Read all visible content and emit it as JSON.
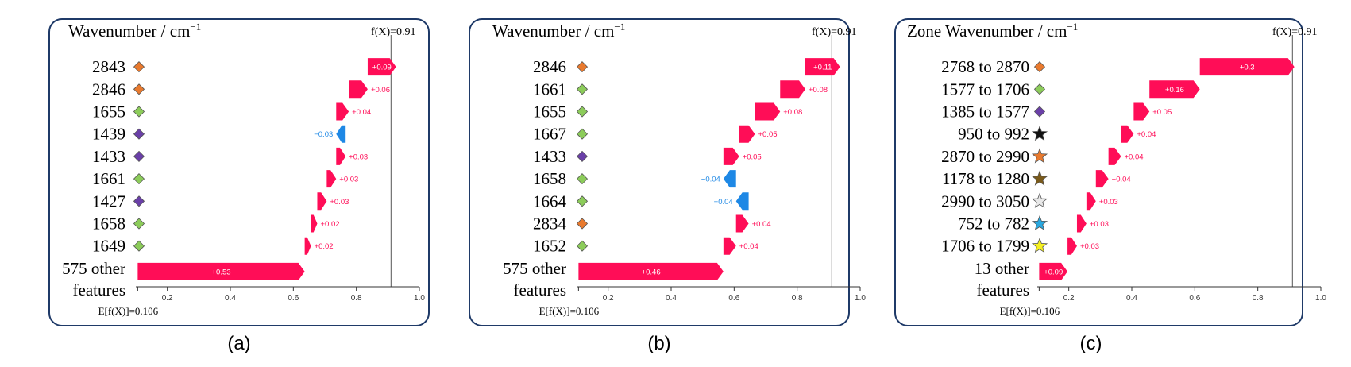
{
  "colors": {
    "positive": "#ff0d57",
    "negative": "#1e88e5",
    "frame": "#1f3a68",
    "orange_marker": "#e97a2e",
    "green_marker": "#8ccc5a",
    "purple_marker": "#6a3fa8",
    "black_marker": "#111111",
    "brown_marker": "#7a5a1a",
    "gray_marker": "#e8e8e8",
    "blue_marker": "#29a8e0",
    "yellow_marker": "#f5f020"
  },
  "chart_data": [
    {
      "type": "bar",
      "subtype": "shap-waterfall",
      "caption": "(a)",
      "title": "Wavenumber / cm",
      "title_sup": "−1",
      "fx_label": "f(X)=0.91",
      "fx": 0.91,
      "ex_label": "E[f(X)]=0.106",
      "ex": 0.106,
      "xlim": [
        0.1,
        1.0
      ],
      "xticks": [
        "0.2",
        "0.4",
        "0.6",
        "0.8",
        "1.0"
      ],
      "features": [
        {
          "label": "2843",
          "value": 0.09,
          "text": "+0.09",
          "marker": "diamond",
          "color": "orange_marker"
        },
        {
          "label": "2846",
          "value": 0.06,
          "text": "+0.06",
          "marker": "diamond",
          "color": "orange_marker"
        },
        {
          "label": "1655",
          "value": 0.04,
          "text": "+0.04",
          "marker": "diamond",
          "color": "green_marker"
        },
        {
          "label": "1439",
          "value": -0.03,
          "text": "−0.03",
          "marker": "diamond",
          "color": "purple_marker"
        },
        {
          "label": "1433",
          "value": 0.03,
          "text": "+0.03",
          "marker": "diamond",
          "color": "purple_marker"
        },
        {
          "label": "1661",
          "value": 0.03,
          "text": "+0.03",
          "marker": "diamond",
          "color": "green_marker"
        },
        {
          "label": "1427",
          "value": 0.03,
          "text": "+0.03",
          "marker": "diamond",
          "color": "purple_marker"
        },
        {
          "label": "1658",
          "value": 0.02,
          "text": "+0.02",
          "marker": "diamond",
          "color": "green_marker"
        },
        {
          "label": "1649",
          "value": 0.02,
          "text": "+0.02",
          "marker": "diamond",
          "color": "green_marker"
        },
        {
          "label": "575 other",
          "label2": "features",
          "value": 0.53,
          "text": "+0.53",
          "marker": "none",
          "color": ""
        }
      ]
    },
    {
      "type": "bar",
      "subtype": "shap-waterfall",
      "caption": "(b)",
      "title": "Wavenumber / cm",
      "title_sup": "−1",
      "fx_label": "f(X)=0.91",
      "fx": 0.91,
      "ex_label": "E[f(X)]=0.106",
      "ex": 0.106,
      "xlim": [
        0.1,
        1.0
      ],
      "xticks": [
        "0.2",
        "0.4",
        "0.6",
        "0.8",
        "1.0"
      ],
      "features": [
        {
          "label": "2846",
          "value": 0.11,
          "text": "+0.11",
          "marker": "diamond",
          "color": "orange_marker"
        },
        {
          "label": "1661",
          "value": 0.08,
          "text": "+0.08",
          "marker": "diamond",
          "color": "green_marker"
        },
        {
          "label": "1655",
          "value": 0.08,
          "text": "+0.08",
          "marker": "diamond",
          "color": "green_marker"
        },
        {
          "label": "1667",
          "value": 0.05,
          "text": "+0.05",
          "marker": "diamond",
          "color": "green_marker"
        },
        {
          "label": "1433",
          "value": 0.05,
          "text": "+0.05",
          "marker": "diamond",
          "color": "purple_marker"
        },
        {
          "label": "1658",
          "value": -0.04,
          "text": "−0.04",
          "marker": "diamond",
          "color": "green_marker"
        },
        {
          "label": "1664",
          "value": -0.04,
          "text": "−0.04",
          "marker": "diamond",
          "color": "green_marker"
        },
        {
          "label": "2834",
          "value": 0.04,
          "text": "+0.04",
          "marker": "diamond",
          "color": "orange_marker"
        },
        {
          "label": "1652",
          "value": 0.04,
          "text": "+0.04",
          "marker": "diamond",
          "color": "green_marker"
        },
        {
          "label": "575 other",
          "label2": "features",
          "value": 0.46,
          "text": "+0.46",
          "marker": "none",
          "color": ""
        }
      ]
    },
    {
      "type": "bar",
      "subtype": "shap-waterfall",
      "caption": "(c)",
      "title": "Zone Wavenumber / cm",
      "title_sup": "−1",
      "fx_label": "f(X)=0.91",
      "fx": 0.91,
      "ex_label": "E[f(X)]=0.106",
      "ex": 0.106,
      "xlim": [
        0.1,
        1.0
      ],
      "xticks": [
        "0.2",
        "0.4",
        "0.6",
        "0.8",
        "1.0"
      ],
      "features": [
        {
          "label": "2768 to 2870",
          "value": 0.3,
          "text": "+0.3",
          "marker": "diamond",
          "color": "orange_marker"
        },
        {
          "label": "1577 to 1706",
          "value": 0.16,
          "text": "+0.16",
          "marker": "diamond",
          "color": "green_marker"
        },
        {
          "label": "1385 to 1577",
          "value": 0.05,
          "text": "+0.05",
          "marker": "diamond",
          "color": "purple_marker"
        },
        {
          "label": "950 to 992",
          "value": 0.04,
          "text": "+0.04",
          "marker": "star",
          "color": "black_marker"
        },
        {
          "label": "2870 to 2990",
          "value": 0.04,
          "text": "+0.04",
          "marker": "star",
          "color": "orange_marker"
        },
        {
          "label": "1178 to 1280",
          "value": 0.04,
          "text": "+0.04",
          "marker": "star",
          "color": "brown_marker"
        },
        {
          "label": "2990 to 3050",
          "value": 0.03,
          "text": "+0.03",
          "marker": "star",
          "color": "gray_marker"
        },
        {
          "label": "752 to 782",
          "value": 0.03,
          "text": "+0.03",
          "marker": "star",
          "color": "blue_marker"
        },
        {
          "label": "1706 to 1799",
          "value": 0.03,
          "text": "+0.03",
          "marker": "star",
          "color": "yellow_marker"
        },
        {
          "label": "13 other",
          "label2": "features",
          "value": 0.09,
          "text": "+0.09",
          "marker": "none",
          "color": ""
        }
      ]
    }
  ]
}
